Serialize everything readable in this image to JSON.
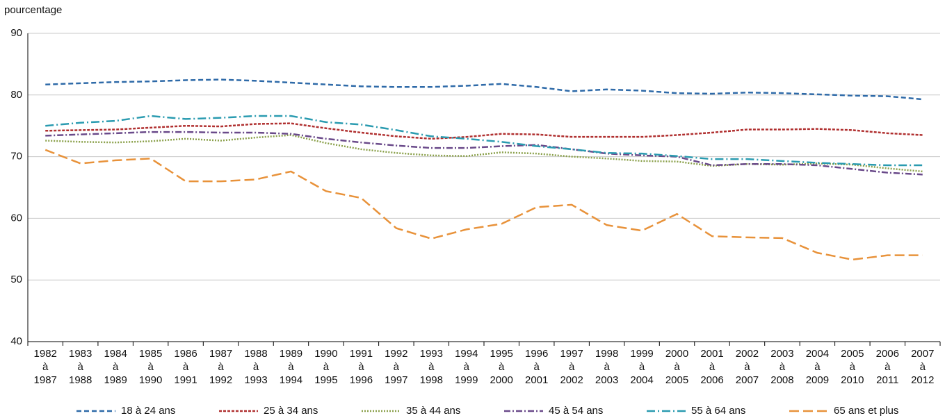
{
  "chart_data": {
    "type": "line",
    "ylabel": "pourcentage",
    "categories": [
      [
        "1982",
        "à",
        "1987"
      ],
      [
        "1983",
        "à",
        "1988"
      ],
      [
        "1984",
        "à",
        "1989"
      ],
      [
        "1985",
        "à",
        "1990"
      ],
      [
        "1986",
        "à",
        "1991"
      ],
      [
        "1987",
        "à",
        "1992"
      ],
      [
        "1988",
        "à",
        "1993"
      ],
      [
        "1989",
        "à",
        "1994"
      ],
      [
        "1990",
        "à",
        "1995"
      ],
      [
        "1991",
        "à",
        "1996"
      ],
      [
        "1992",
        "à",
        "1997"
      ],
      [
        "1993",
        "à",
        "1998"
      ],
      [
        "1994",
        "à",
        "1999"
      ],
      [
        "1995",
        "à",
        "2000"
      ],
      [
        "1996",
        "à",
        "2001"
      ],
      [
        "1997",
        "à",
        "2002"
      ],
      [
        "1998",
        "à",
        "2003"
      ],
      [
        "1999",
        "à",
        "2004"
      ],
      [
        "2000",
        "à",
        "2005"
      ],
      [
        "2001",
        "à",
        "2006"
      ],
      [
        "2002",
        "à",
        "2007"
      ],
      [
        "2003",
        "à",
        "2008"
      ],
      [
        "2004",
        "à",
        "2009"
      ],
      [
        "2005",
        "à",
        "2010"
      ],
      [
        "2006",
        "à",
        "2011"
      ],
      [
        "2007",
        "à",
        "2012"
      ]
    ],
    "ylim": [
      40,
      90
    ],
    "yticks": [
      40,
      50,
      60,
      70,
      80,
      90
    ],
    "grid": true,
    "legend": "bottom",
    "series": [
      {
        "name": "18 à 24 ans",
        "color": "#2e6aa8",
        "dash": "7 4",
        "values": [
          81.7,
          81.9,
          82.1,
          82.2,
          82.4,
          82.5,
          82.3,
          82.0,
          81.7,
          81.4,
          81.3,
          81.3,
          81.5,
          81.8,
          81.3,
          80.6,
          80.9,
          80.7,
          80.3,
          80.2,
          80.4,
          80.3,
          80.1,
          79.9,
          79.8,
          79.3
        ]
      },
      {
        "name": "25 à 34 ans",
        "color": "#b03030",
        "dash": "4 2",
        "values": [
          74.2,
          74.3,
          74.4,
          74.7,
          75.0,
          74.9,
          75.3,
          75.4,
          74.6,
          73.9,
          73.3,
          72.9,
          73.2,
          73.7,
          73.6,
          73.2,
          73.2,
          73.2,
          73.5,
          73.9,
          74.4,
          74.4,
          74.5,
          74.3,
          73.8,
          73.5
        ]
      },
      {
        "name": "35 à 44 ans",
        "color": "#8aa04a",
        "dash": "2 2",
        "values": [
          72.6,
          72.4,
          72.3,
          72.5,
          72.9,
          72.6,
          73.1,
          73.5,
          72.2,
          71.2,
          70.6,
          70.2,
          70.1,
          70.7,
          70.5,
          70.0,
          69.7,
          69.3,
          69.2,
          68.5,
          68.8,
          68.7,
          68.9,
          68.7,
          68.1,
          67.6
        ]
      },
      {
        "name": "45 à 54 ans",
        "color": "#6a4a8a",
        "dash": "9 3 2 3",
        "values": [
          73.4,
          73.6,
          73.8,
          74.0,
          74.0,
          73.9,
          73.9,
          73.7,
          72.9,
          72.3,
          71.8,
          71.4,
          71.4,
          71.7,
          71.9,
          71.2,
          70.5,
          70.2,
          70.0,
          68.6,
          68.8,
          68.8,
          68.6,
          68.0,
          67.4,
          67.1
        ]
      },
      {
        "name": "55 à 64 ans",
        "color": "#2a9bb0",
        "dash": "12 4 2 4",
        "values": [
          75.0,
          75.5,
          75.8,
          76.6,
          76.1,
          76.3,
          76.6,
          76.6,
          75.6,
          75.2,
          74.3,
          73.3,
          72.9,
          72.4,
          71.7,
          71.2,
          70.6,
          70.5,
          70.1,
          69.6,
          69.6,
          69.3,
          69.0,
          68.8,
          68.6,
          68.6
        ]
      },
      {
        "name": "65 ans et plus",
        "color": "#e8923a",
        "dash": "14 6",
        "values": [
          71.1,
          68.9,
          69.4,
          69.7,
          66.0,
          66.0,
          66.3,
          67.6,
          64.4,
          63.3,
          58.4,
          56.7,
          58.2,
          59.1,
          61.8,
          62.2,
          58.9,
          58.0,
          60.7,
          57.1,
          56.9,
          56.8,
          54.4,
          53.3,
          54.0,
          54.0
        ]
      }
    ]
  }
}
